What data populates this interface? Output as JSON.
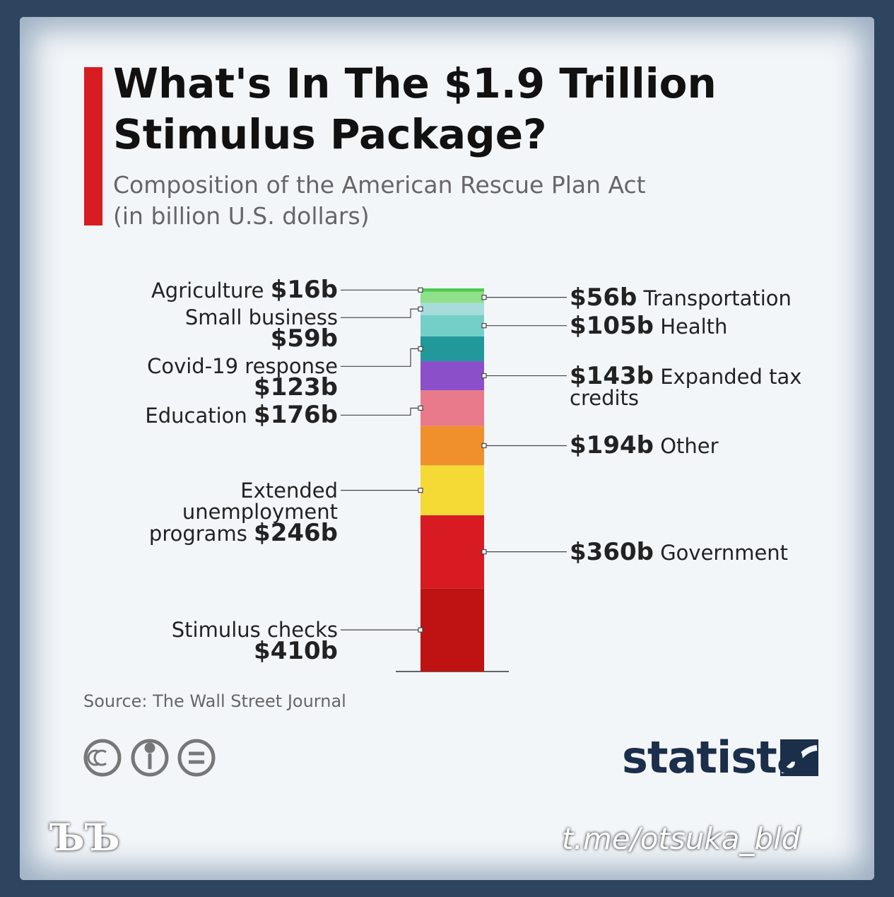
{
  "chart_data": {
    "type": "stacked_bar",
    "title": "What's In The $1.9 Trillion Stimulus Package?",
    "subtitle": "Composition of the American Rescue Plan Act (in billion U.S. dollars)",
    "categories": [
      null
    ],
    "series": [
      {
        "name": "Stimulus checks",
        "color": "#bf1212",
        "values": [
          410
        ],
        "value_labels": [
          "$410b"
        ],
        "label_side": "left"
      },
      {
        "name": "Government",
        "color": "#d81b22",
        "values": [
          360
        ],
        "value_labels": [
          "$360b"
        ],
        "label_side": "right"
      },
      {
        "name": "Extended unemployment programs",
        "color": "#f5d935",
        "values": [
          246
        ],
        "value_labels": [
          "$246b"
        ],
        "label_side": "left"
      },
      {
        "name": "Other",
        "color": "#f0902d",
        "values": [
          194
        ],
        "value_labels": [
          "$194b"
        ],
        "label_side": "right"
      },
      {
        "name": "Education",
        "color": "#e97a8c",
        "values": [
          176
        ],
        "value_labels": [
          "$176b"
        ],
        "label_side": "left"
      },
      {
        "name": "Expanded tax credits",
        "color": "#8a4fc9",
        "values": [
          143
        ],
        "value_labels": [
          "$143b"
        ],
        "label_side": "right"
      },
      {
        "name": "Covid-19 response",
        "color": "#21999a",
        "values": [
          123
        ],
        "value_labels": [
          "$123b"
        ],
        "label_side": "left"
      },
      {
        "name": "Health",
        "color": "#74cfc9",
        "values": [
          105
        ],
        "value_labels": [
          "$105b"
        ],
        "label_side": "right"
      },
      {
        "name": "Small business",
        "color": "#a7dcdc",
        "values": [
          59
        ],
        "value_labels": [
          "$59b"
        ],
        "label_side": "left"
      },
      {
        "name": "Transportation",
        "color": "#8fe08b",
        "values": [
          56
        ],
        "value_labels": [
          "$56b"
        ],
        "label_side": "right"
      },
      {
        "name": "Agriculture",
        "color": "#4fc94f",
        "values": [
          16
        ],
        "value_labels": [
          "$16b"
        ],
        "label_side": "left"
      }
    ],
    "source": "Source: The Wall Street Journal",
    "brand": "statista"
  },
  "watermark": {
    "left": "ЪЪ",
    "right": "t.me/otsuka_bld"
  }
}
